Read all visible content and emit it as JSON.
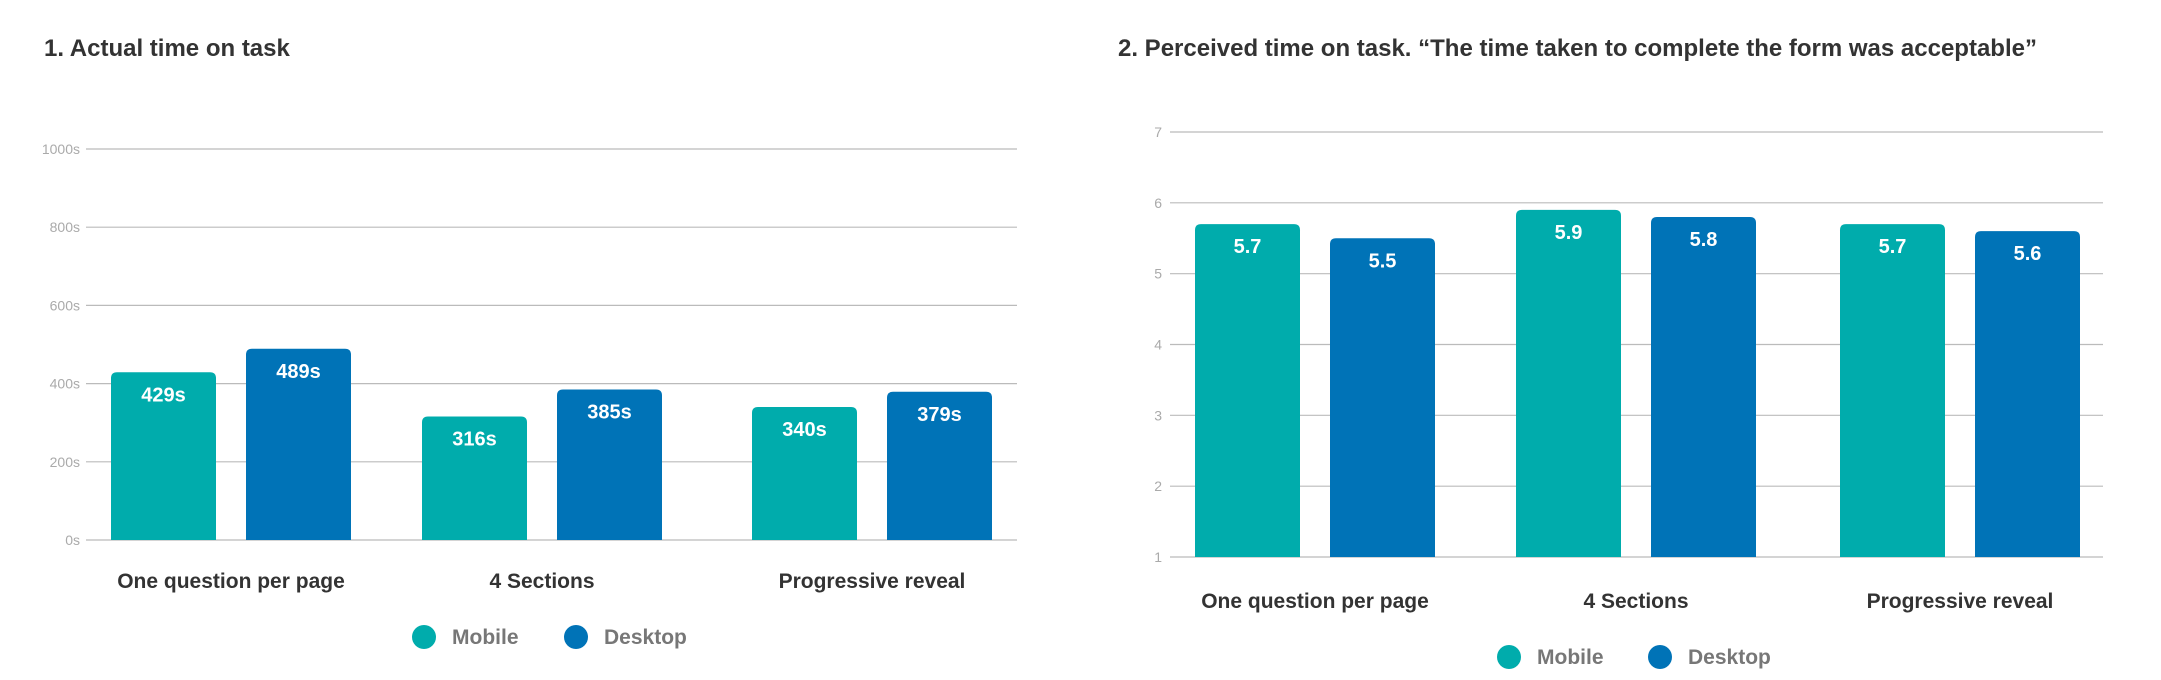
{
  "colors": {
    "mobile": "#00ACAC",
    "desktop": "#0073B7",
    "grid": "#BBBBBB"
  },
  "chart_data": [
    {
      "type": "bar",
      "title": "1. Actual time on task",
      "categories": [
        "One question per page",
        "4 Sections",
        "Progressive reveal"
      ],
      "series": [
        {
          "name": "Mobile",
          "values": [
            429,
            316,
            340
          ],
          "labels": [
            "429s",
            "316s",
            "340s"
          ]
        },
        {
          "name": "Desktop",
          "values": [
            489,
            385,
            379
          ],
          "labels": [
            "489s",
            "385s",
            "379s"
          ]
        }
      ],
      "ylim": [
        0,
        1000
      ],
      "yticks": [
        0,
        200,
        400,
        600,
        800,
        1000
      ],
      "ytick_labels": [
        "0s",
        "200s",
        "400s",
        "600s",
        "800s",
        "1000s"
      ],
      "xlabel": "",
      "ylabel": "",
      "grid": true,
      "legend": "bottom-center"
    },
    {
      "type": "bar",
      "title": "2. Perceived time on task. “The time taken to complete the form was acceptable”",
      "categories": [
        "One question per page",
        "4 Sections",
        "Progressive reveal"
      ],
      "series": [
        {
          "name": "Mobile",
          "values": [
            5.7,
            5.9,
            5.7
          ],
          "labels": [
            "5.7",
            "5.9",
            "5.7"
          ]
        },
        {
          "name": "Desktop",
          "values": [
            5.5,
            5.8,
            5.6
          ],
          "labels": [
            "5.5",
            "5.8",
            "5.6"
          ]
        }
      ],
      "ylim": [
        1,
        7
      ],
      "yticks": [
        1,
        2,
        3,
        4,
        5,
        6,
        7
      ],
      "ytick_labels": [
        "1",
        "2",
        "3",
        "4",
        "5",
        "6",
        "7"
      ],
      "xlabel": "",
      "ylabel": "",
      "grid": true,
      "legend": "bottom-center"
    }
  ]
}
